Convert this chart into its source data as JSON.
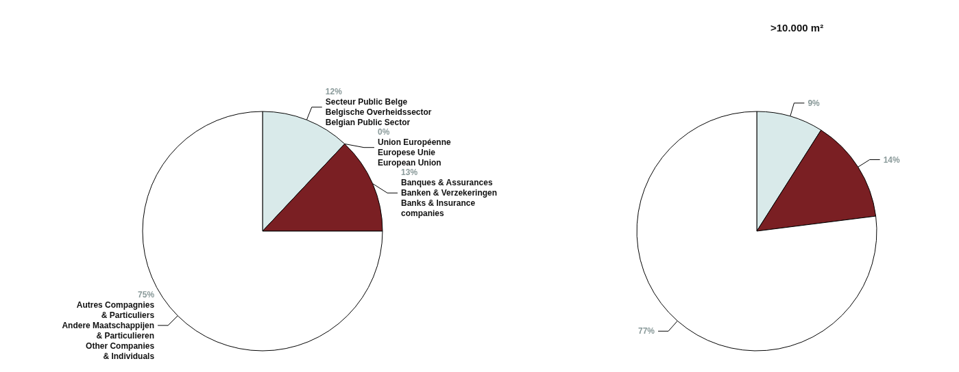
{
  "chart_data": [
    {
      "type": "pie",
      "categories": [
        "Secteur Public Belge\nBelgische Overheidssector\nBelgian Public Sector",
        "Union Européenne\nEuropese Unie\nEuropean Union",
        "Banques & Assurances\nBanken & Verzekeringen\nBanks & Insurance\ncompanies",
        "Autres Compagnies\n& Particuliers\nAndere Maatschappijen\n& Particulieren\nOther Companies\n& Individuals"
      ],
      "values": [
        12,
        0,
        13,
        75
      ],
      "value_labels": [
        "12%",
        "0%",
        "13%",
        "75%"
      ],
      "colors": [
        "#d9eaea",
        "#ffffff",
        "#7a1f23",
        "#ffffff"
      ]
    },
    {
      "type": "pie",
      "title": ">10.000 m²",
      "categories": [
        null,
        null,
        null
      ],
      "values": [
        9,
        14,
        77
      ],
      "value_labels": [
        "9%",
        "14%",
        "77%"
      ],
      "colors": [
        "#d9eaea",
        "#7a1f23",
        "#ffffff"
      ]
    }
  ]
}
